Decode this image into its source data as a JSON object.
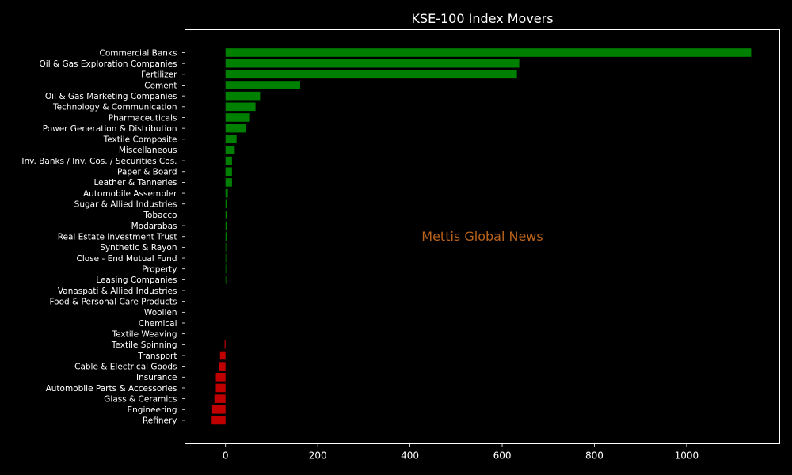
{
  "chart_data": {
    "type": "bar",
    "orientation": "horizontal",
    "title": "KSE-100 Index Movers",
    "watermark": "Mettis Global News",
    "xlabel": "",
    "ylabel": "",
    "xlim": [
      -88,
      1202
    ],
    "xticks": [
      0,
      200,
      400,
      600,
      800,
      1000
    ],
    "grid": false,
    "legend": false,
    "colors": {
      "background": "#000000",
      "axes": "#ffffff",
      "text": "#ffffff",
      "positive": "#008000",
      "negative": "#c00000",
      "watermark": "#b8621b"
    },
    "categories": [
      "Commercial Banks",
      "Oil & Gas Exploration Companies",
      "Fertilizer",
      "Cement",
      "Oil & Gas Marketing Companies",
      "Technology & Communication",
      "Pharmaceuticals",
      "Power Generation & Distribution",
      "Textile Composite",
      "Miscellaneous",
      "Inv. Banks / Inv. Cos. / Securities Cos.",
      "Paper & Board",
      "Leather & Tanneries",
      "Automobile Assembler",
      "Sugar & Allied Industries",
      "Tobacco",
      "Modarabas",
      "Real Estate Investment Trust",
      "Synthetic & Rayon",
      "Close - End Mutual Fund",
      "Property",
      "Leasing Companies",
      "Vanaspati & Allied Industries",
      "Food & Personal Care Products",
      "Woollen",
      "Chemical",
      "Textile Weaving",
      "Textile Spinning",
      "Transport",
      "Cable & Electrical Goods",
      "Insurance",
      "Automobile Parts & Accessories",
      "Glass & Ceramics",
      "Engineering",
      "Refinery"
    ],
    "values": [
      1140,
      637,
      632,
      162,
      75,
      65,
      53,
      44,
      24,
      20,
      14,
      14,
      14,
      5,
      3,
      3,
      2.5,
      2.5,
      1,
      1,
      1,
      0.7,
      0,
      0,
      0,
      0,
      0,
      -2,
      -12,
      -14,
      -21,
      -21,
      -24,
      -29,
      -30
    ]
  }
}
